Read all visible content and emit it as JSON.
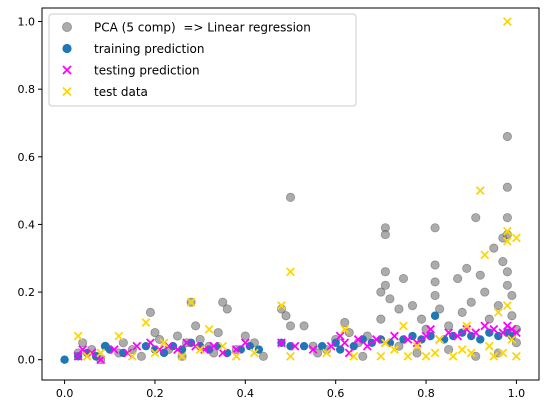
{
  "chart_data": {
    "type": "scatter",
    "xlim": [
      -0.05,
      1.05
    ],
    "ylim": [
      -0.06,
      1.04
    ],
    "x_ticks": [
      "0.0",
      "0.2",
      "0.4",
      "0.6",
      "0.8",
      "1.0"
    ],
    "y_ticks": [
      "0.0",
      "0.2",
      "0.4",
      "0.6",
      "0.8",
      "1.0"
    ],
    "grid": false,
    "legend_position": "top-left",
    "series": [
      {
        "name": "PCA (5 comp)  => Linear regression",
        "marker": "circle",
        "color": "#808080",
        "points": [
          [
            0.03,
            0.02
          ],
          [
            0.04,
            0.05
          ],
          [
            0.06,
            0.03
          ],
          [
            0.07,
            0.01
          ],
          [
            0.09,
            0.04
          ],
          [
            0.12,
            0.02
          ],
          [
            0.15,
            0.03
          ],
          [
            0.17,
            0.01
          ],
          [
            0.19,
            0.14
          ],
          [
            0.2,
            0.08
          ],
          [
            0.21,
            0.06
          ],
          [
            0.23,
            0.03
          ],
          [
            0.25,
            0.07
          ],
          [
            0.27,
            0.05
          ],
          [
            0.28,
            0.17
          ],
          [
            0.29,
            0.1
          ],
          [
            0.3,
            0.06
          ],
          [
            0.32,
            0.04
          ],
          [
            0.34,
            0.08
          ],
          [
            0.35,
            0.17
          ],
          [
            0.36,
            0.15
          ],
          [
            0.38,
            0.03
          ],
          [
            0.4,
            0.07
          ],
          [
            0.42,
            0.05
          ],
          [
            0.48,
            0.15
          ],
          [
            0.49,
            0.13
          ],
          [
            0.5,
            0.48
          ],
          [
            0.5,
            0.1
          ],
          [
            0.53,
            0.1
          ],
          [
            0.55,
            0.04
          ],
          [
            0.58,
            0.03
          ],
          [
            0.6,
            0.06
          ],
          [
            0.62,
            0.11
          ],
          [
            0.63,
            0.08
          ],
          [
            0.65,
            0.05
          ],
          [
            0.67,
            0.07
          ],
          [
            0.7,
            0.2
          ],
          [
            0.7,
            0.12
          ],
          [
            0.71,
            0.39
          ],
          [
            0.71,
            0.37
          ],
          [
            0.71,
            0.26
          ],
          [
            0.71,
            0.22
          ],
          [
            0.72,
            0.18
          ],
          [
            0.74,
            0.15
          ],
          [
            0.75,
            0.24
          ],
          [
            0.77,
            0.16
          ],
          [
            0.79,
            0.12
          ],
          [
            0.8,
            0.09
          ],
          [
            0.82,
            0.39
          ],
          [
            0.82,
            0.28
          ],
          [
            0.82,
            0.23
          ],
          [
            0.82,
            0.19
          ],
          [
            0.83,
            0.15
          ],
          [
            0.85,
            0.1
          ],
          [
            0.87,
            0.24
          ],
          [
            0.88,
            0.14
          ],
          [
            0.89,
            0.27
          ],
          [
            0.9,
            0.17
          ],
          [
            0.91,
            0.42
          ],
          [
            0.92,
            0.25
          ],
          [
            0.93,
            0.2
          ],
          [
            0.94,
            0.12
          ],
          [
            0.95,
            0.33
          ],
          [
            0.96,
            0.16
          ],
          [
            0.97,
            0.36
          ],
          [
            0.97,
            0.29
          ],
          [
            0.98,
            0.66
          ],
          [
            0.98,
            0.51
          ],
          [
            0.98,
            0.42
          ],
          [
            0.98,
            0.37
          ],
          [
            0.98,
            0.26
          ],
          [
            0.98,
            0.22
          ],
          [
            0.99,
            0.19
          ],
          [
            0.99,
            0.13
          ],
          [
            1.0,
            0.09
          ],
          [
            1.0,
            0.05
          ],
          [
            0.96,
            0.02
          ],
          [
            0.91,
            0.01
          ],
          [
            0.85,
            0.03
          ],
          [
            0.78,
            0.02
          ],
          [
            0.74,
            0.04
          ],
          [
            0.66,
            0.01
          ],
          [
            0.56,
            0.02
          ],
          [
            0.44,
            0.01
          ],
          [
            0.33,
            0.02
          ],
          [
            0.26,
            0.01
          ],
          [
            0.13,
            0.05
          ],
          [
            0.08,
            0.0
          ]
        ]
      },
      {
        "name": "training prediction",
        "marker": "circle",
        "color": "#1f77b4",
        "points": [
          [
            0.0,
            0.0
          ],
          [
            0.03,
            0.01
          ],
          [
            0.05,
            0.02
          ],
          [
            0.07,
            0.01
          ],
          [
            0.09,
            0.04
          ],
          [
            0.1,
            0.03
          ],
          [
            0.13,
            0.02
          ],
          [
            0.18,
            0.04
          ],
          [
            0.2,
            0.03
          ],
          [
            0.22,
            0.02
          ],
          [
            0.24,
            0.04
          ],
          [
            0.26,
            0.03
          ],
          [
            0.28,
            0.05
          ],
          [
            0.3,
            0.04
          ],
          [
            0.32,
            0.03
          ],
          [
            0.34,
            0.04
          ],
          [
            0.36,
            0.02
          ],
          [
            0.39,
            0.03
          ],
          [
            0.41,
            0.04
          ],
          [
            0.43,
            0.03
          ],
          [
            0.48,
            0.05
          ],
          [
            0.5,
            0.04
          ],
          [
            0.53,
            0.04
          ],
          [
            0.57,
            0.04
          ],
          [
            0.6,
            0.05
          ],
          [
            0.61,
            0.03
          ],
          [
            0.64,
            0.04
          ],
          [
            0.66,
            0.06
          ],
          [
            0.68,
            0.05
          ],
          [
            0.7,
            0.06
          ],
          [
            0.72,
            0.05
          ],
          [
            0.75,
            0.06
          ],
          [
            0.77,
            0.07
          ],
          [
            0.79,
            0.06
          ],
          [
            0.81,
            0.07
          ],
          [
            0.82,
            0.13
          ],
          [
            0.84,
            0.06
          ],
          [
            0.86,
            0.07
          ],
          [
            0.88,
            0.08
          ],
          [
            0.9,
            0.07
          ],
          [
            0.92,
            0.06
          ],
          [
            0.94,
            0.08
          ],
          [
            0.96,
            0.07
          ],
          [
            0.98,
            0.08
          ],
          [
            0.99,
            0.07
          ]
        ]
      },
      {
        "name": "testing prediction",
        "marker": "x",
        "color": "#ff00ff",
        "points": [
          [
            0.03,
            0.01
          ],
          [
            0.04,
            0.03
          ],
          [
            0.06,
            0.02
          ],
          [
            0.08,
            0.0
          ],
          [
            0.11,
            0.03
          ],
          [
            0.14,
            0.02
          ],
          [
            0.16,
            0.04
          ],
          [
            0.19,
            0.05
          ],
          [
            0.21,
            0.03
          ],
          [
            0.23,
            0.04
          ],
          [
            0.25,
            0.03
          ],
          [
            0.27,
            0.05
          ],
          [
            0.29,
            0.04
          ],
          [
            0.31,
            0.03
          ],
          [
            0.33,
            0.04
          ],
          [
            0.35,
            0.02
          ],
          [
            0.38,
            0.03
          ],
          [
            0.4,
            0.05
          ],
          [
            0.48,
            0.05
          ],
          [
            0.51,
            0.04
          ],
          [
            0.55,
            0.03
          ],
          [
            0.59,
            0.04
          ],
          [
            0.61,
            0.07
          ],
          [
            0.62,
            0.05
          ],
          [
            0.63,
            0.02
          ],
          [
            0.65,
            0.06
          ],
          [
            0.67,
            0.04
          ],
          [
            0.69,
            0.06
          ],
          [
            0.71,
            0.05
          ],
          [
            0.73,
            0.07
          ],
          [
            0.76,
            0.06
          ],
          [
            0.78,
            0.05
          ],
          [
            0.8,
            0.07
          ],
          [
            0.81,
            0.09
          ],
          [
            0.83,
            0.06
          ],
          [
            0.85,
            0.08
          ],
          [
            0.87,
            0.07
          ],
          [
            0.89,
            0.09
          ],
          [
            0.91,
            0.08
          ],
          [
            0.93,
            0.1
          ],
          [
            0.95,
            0.09
          ],
          [
            0.97,
            0.08
          ],
          [
            0.98,
            0.1
          ],
          [
            0.99,
            0.09
          ],
          [
            1.0,
            0.08
          ]
        ]
      },
      {
        "name": "test data",
        "marker": "x",
        "color": "#ffd700",
        "points": [
          [
            0.03,
            0.07
          ],
          [
            0.05,
            0.01
          ],
          [
            0.08,
            0.02
          ],
          [
            0.12,
            0.07
          ],
          [
            0.15,
            0.01
          ],
          [
            0.18,
            0.11
          ],
          [
            0.2,
            0.02
          ],
          [
            0.22,
            0.05
          ],
          [
            0.26,
            0.01
          ],
          [
            0.28,
            0.17
          ],
          [
            0.3,
            0.03
          ],
          [
            0.32,
            0.09
          ],
          [
            0.35,
            0.04
          ],
          [
            0.38,
            0.01
          ],
          [
            0.42,
            0.02
          ],
          [
            0.48,
            0.16
          ],
          [
            0.5,
            0.26
          ],
          [
            0.5,
            0.01
          ],
          [
            0.58,
            0.02
          ],
          [
            0.62,
            0.09
          ],
          [
            0.64,
            0.01
          ],
          [
            0.7,
            0.01
          ],
          [
            0.71,
            0.05
          ],
          [
            0.73,
            0.03
          ],
          [
            0.75,
            0.1
          ],
          [
            0.76,
            0.01
          ],
          [
            0.78,
            0.04
          ],
          [
            0.8,
            0.01
          ],
          [
            0.82,
            0.02
          ],
          [
            0.83,
            0.06
          ],
          [
            0.86,
            0.01
          ],
          [
            0.88,
            0.03
          ],
          [
            0.89,
            0.1
          ],
          [
            0.9,
            0.02
          ],
          [
            0.92,
            0.5
          ],
          [
            0.93,
            0.31
          ],
          [
            0.94,
            0.04
          ],
          [
            0.95,
            0.01
          ],
          [
            0.96,
            0.14
          ],
          [
            0.97,
            0.02
          ],
          [
            0.98,
            1.0
          ],
          [
            0.98,
            0.38
          ],
          [
            0.98,
            0.35
          ],
          [
            0.98,
            0.16
          ],
          [
            0.99,
            0.06
          ],
          [
            1.0,
            0.36
          ],
          [
            1.0,
            0.01
          ]
        ]
      }
    ]
  }
}
